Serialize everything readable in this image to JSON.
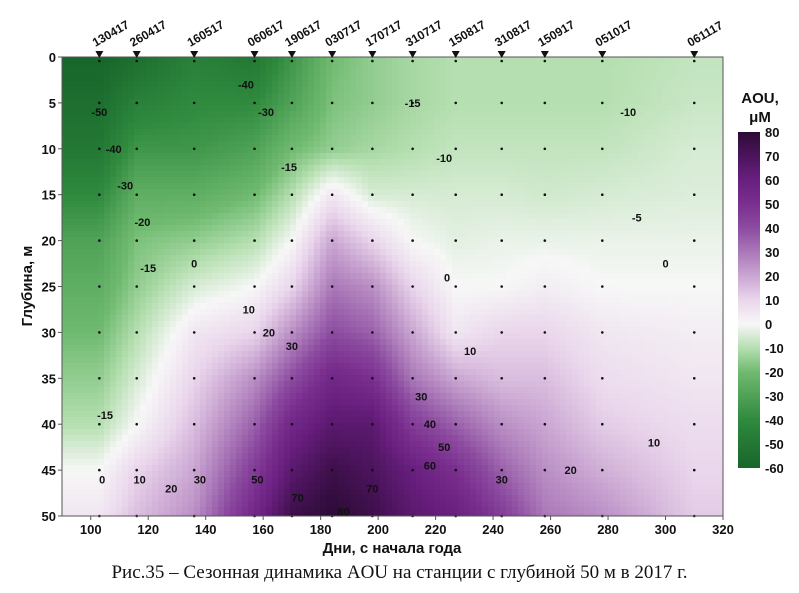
{
  "chart_data": {
    "type": "heatmap",
    "title": "",
    "xlabel": "Дни, с начала года",
    "ylabel": "Глубина, м",
    "xlim": [
      90,
      320
    ],
    "ylim": [
      0,
      50
    ],
    "xticks": [
      100,
      120,
      140,
      160,
      180,
      200,
      220,
      240,
      260,
      280,
      300,
      320
    ],
    "yticks": [
      0,
      5,
      10,
      15,
      20,
      25,
      30,
      35,
      40,
      45,
      50
    ],
    "colorbar": {
      "title": "AOU,",
      "unit": "μM",
      "ticks": [
        80,
        70,
        60,
        50,
        40,
        30,
        20,
        10,
        0,
        -10,
        -20,
        -30,
        -40,
        -50,
        -60
      ],
      "range": [
        -60,
        80
      ],
      "colors": [
        [
          -60,
          "#17652a"
        ],
        [
          -40,
          "#2f8a3e"
        ],
        [
          -20,
          "#6fba70"
        ],
        [
          -10,
          "#b5dfb0"
        ],
        [
          0,
          "#f7f7f7"
        ],
        [
          10,
          "#ead6ec"
        ],
        [
          20,
          "#caa6d2"
        ],
        [
          30,
          "#aa78b8"
        ],
        [
          40,
          "#8c4ba0"
        ],
        [
          50,
          "#7a2f8f"
        ],
        [
          60,
          "#681f7e"
        ],
        [
          70,
          "#4c145d"
        ],
        [
          80,
          "#2c0b36"
        ]
      ]
    },
    "stations": [
      {
        "label": "130417",
        "day": 103
      },
      {
        "label": "260417",
        "day": 116
      },
      {
        "label": "160517",
        "day": 136
      },
      {
        "label": "060617",
        "day": 157
      },
      {
        "label": "190617",
        "day": 170
      },
      {
        "label": "030717",
        "day": 184
      },
      {
        "label": "170717",
        "day": 198
      },
      {
        "label": "310717",
        "day": 212
      },
      {
        "label": "150817",
        "day": 227
      },
      {
        "label": "310817",
        "day": 243
      },
      {
        "label": "150917",
        "day": 258
      },
      {
        "label": "051017",
        "day": 278
      },
      {
        "label": "061117",
        "day": 310
      }
    ],
    "depths": [
      0,
      5,
      10,
      15,
      20,
      25,
      30,
      35,
      40,
      45,
      50
    ],
    "values": [
      [
        -60,
        -55,
        -50,
        -40,
        -30,
        -25,
        -20,
        -15,
        -10,
        0,
        5
      ],
      [
        -55,
        -45,
        -35,
        -25,
        -18,
        -15,
        -10,
        -5,
        0,
        10,
        15
      ],
      [
        -45,
        -40,
        -35,
        -25,
        -15,
        -5,
        5,
        10,
        15,
        20,
        25
      ],
      [
        -50,
        -40,
        -30,
        -20,
        -10,
        0,
        10,
        25,
        35,
        45,
        55
      ],
      [
        -35,
        -30,
        -20,
        -10,
        0,
        10,
        25,
        40,
        55,
        65,
        75
      ],
      [
        -20,
        -18,
        -15,
        5,
        20,
        30,
        40,
        55,
        65,
        75,
        80
      ],
      [
        -15,
        -15,
        -12,
        -5,
        10,
        25,
        35,
        50,
        65,
        70,
        75
      ],
      [
        -12,
        -12,
        -10,
        -5,
        0,
        10,
        20,
        30,
        45,
        60,
        65
      ],
      [
        -10,
        -10,
        -8,
        -5,
        -3,
        0,
        5,
        20,
        35,
        50,
        60
      ],
      [
        -10,
        -10,
        -8,
        -5,
        -2,
        0,
        10,
        15,
        25,
        35,
        45
      ],
      [
        -10,
        -10,
        -8,
        -6,
        -2,
        3,
        10,
        15,
        20,
        25,
        30
      ],
      [
        -10,
        -10,
        -8,
        -5,
        -2,
        0,
        5,
        8,
        12,
        18,
        25
      ],
      [
        -8,
        -7,
        -5,
        -4,
        -2,
        0,
        3,
        5,
        8,
        10,
        12
      ]
    ],
    "contour_labels": [
      {
        "t": "-50",
        "d": 103,
        "z": 6
      },
      {
        "t": "-40",
        "d": 108,
        "z": 10
      },
      {
        "t": "-30",
        "d": 112,
        "z": 14
      },
      {
        "t": "-20",
        "d": 118,
        "z": 18
      },
      {
        "t": "-15",
        "d": 120,
        "z": 23
      },
      {
        "t": "-40",
        "d": 154,
        "z": 3
      },
      {
        "t": "-30",
        "d": 161,
        "z": 6
      },
      {
        "t": "-15",
        "d": 169,
        "z": 12
      },
      {
        "t": "-15",
        "d": 212,
        "z": 5
      },
      {
        "t": "-10",
        "d": 223,
        "z": 11
      },
      {
        "t": "-10",
        "d": 287,
        "z": 6
      },
      {
        "t": "-5",
        "d": 290,
        "z": 17.5
      },
      {
        "t": "0",
        "d": 136,
        "z": 22.5
      },
      {
        "t": "0",
        "d": 224,
        "z": 24
      },
      {
        "t": "0",
        "d": 300,
        "z": 22.5
      },
      {
        "t": "10",
        "d": 155,
        "z": 27.5
      },
      {
        "t": "20",
        "d": 162,
        "z": 30
      },
      {
        "t": "30",
        "d": 170,
        "z": 31.5
      },
      {
        "t": "10",
        "d": 232,
        "z": 32
      },
      {
        "t": "-15",
        "d": 105,
        "z": 39
      },
      {
        "t": "30",
        "d": 215,
        "z": 37
      },
      {
        "t": "40",
        "d": 218,
        "z": 40
      },
      {
        "t": "50",
        "d": 223,
        "z": 42.5
      },
      {
        "t": "60",
        "d": 218,
        "z": 44.5
      },
      {
        "t": "70",
        "d": 198,
        "z": 47
      },
      {
        "t": "80",
        "d": 188,
        "z": 49.5
      },
      {
        "t": "70",
        "d": 172,
        "z": 48
      },
      {
        "t": "50",
        "d": 158,
        "z": 46
      },
      {
        "t": "30",
        "d": 138,
        "z": 46
      },
      {
        "t": "20",
        "d": 128,
        "z": 47
      },
      {
        "t": "10",
        "d": 117,
        "z": 46
      },
      {
        "t": "0",
        "d": 104,
        "z": 46
      },
      {
        "t": "30",
        "d": 243,
        "z": 46
      },
      {
        "t": "20",
        "d": 267,
        "z": 45
      },
      {
        "t": "10",
        "d": 296,
        "z": 42
      }
    ]
  },
  "caption": "Рис.35 – Сезонная динамика AOU на станции с глубиной 50 м в 2017 г."
}
